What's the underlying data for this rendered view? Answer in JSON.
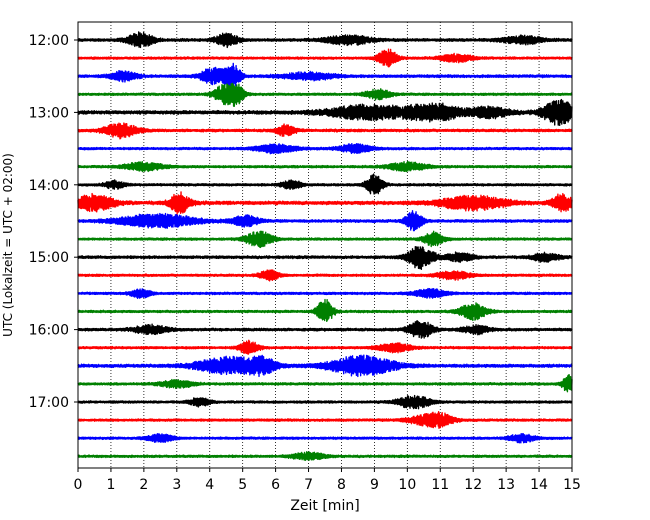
{
  "chart_data": {
    "type": "line",
    "title": "",
    "xlabel": "Zeit  [min]",
    "ylabel": "UTC (Lokalzeit = UTC + 02:00)",
    "xlim": [
      0,
      15
    ],
    "x_ticks": [
      "0",
      "1",
      "2",
      "3",
      "4",
      "5",
      "6",
      "7",
      "8",
      "9",
      "10",
      "11",
      "12",
      "13",
      "14",
      "15"
    ],
    "y_tick_labels": [
      "12:00",
      "13:00",
      "14:00",
      "15:00",
      "16:00",
      "17:00"
    ],
    "y_tick_rows": [
      0,
      4,
      8,
      12,
      16,
      20
    ],
    "grid": {
      "vertical": true,
      "style": "dotted"
    },
    "colors": [
      "#000000",
      "#ff0000",
      "#0000ff",
      "#008000"
    ],
    "traces": [
      {
        "time": "12:00",
        "color": "#000000",
        "noise": 0.35,
        "events": [
          [
            1.9,
            2.2,
            0.4
          ],
          [
            4.5,
            2.0,
            0.35
          ],
          [
            8.2,
            1.4,
            0.7
          ],
          [
            13.5,
            1.2,
            0.6
          ]
        ]
      },
      {
        "time": "12:15",
        "color": "#ff0000",
        "noise": 0.3,
        "events": [
          [
            9.4,
            2.6,
            0.3
          ],
          [
            11.5,
            1.2,
            0.5
          ]
        ]
      },
      {
        "time": "12:30",
        "color": "#0000ff",
        "noise": 0.35,
        "events": [
          [
            1.4,
            1.5,
            0.4
          ],
          [
            4.1,
            2.4,
            0.4
          ],
          [
            4.7,
            3.5,
            0.25
          ],
          [
            7.0,
            1.1,
            0.8
          ]
        ]
      },
      {
        "time": "12:45",
        "color": "#008000",
        "noise": 0.3,
        "events": [
          [
            4.4,
            2.6,
            0.3
          ],
          [
            4.8,
            3.0,
            0.25
          ],
          [
            9.1,
            1.5,
            0.4
          ]
        ]
      },
      {
        "time": "13:00",
        "color": "#000000",
        "noise": 0.45,
        "events": [
          [
            8.8,
            2.2,
            1.2
          ],
          [
            10.8,
            2.6,
            0.8
          ],
          [
            12.5,
            1.6,
            0.6
          ],
          [
            14.6,
            3.6,
            0.5
          ]
        ]
      },
      {
        "time": "13:15",
        "color": "#ff0000",
        "noise": 0.35,
        "events": [
          [
            1.3,
            2.2,
            0.5
          ],
          [
            6.3,
            1.6,
            0.3
          ]
        ]
      },
      {
        "time": "13:30",
        "color": "#0000ff",
        "noise": 0.3,
        "events": [
          [
            6.0,
            1.3,
            0.6
          ],
          [
            8.4,
            1.3,
            0.5
          ]
        ]
      },
      {
        "time": "13:45",
        "color": "#008000",
        "noise": 0.3,
        "events": [
          [
            2.0,
            1.3,
            0.6
          ],
          [
            10.0,
            1.3,
            0.6
          ]
        ]
      },
      {
        "time": "14:00",
        "color": "#000000",
        "noise": 0.3,
        "events": [
          [
            1.1,
            1.2,
            0.3
          ],
          [
            6.5,
            1.4,
            0.3
          ],
          [
            9.0,
            3.2,
            0.25
          ]
        ]
      },
      {
        "time": "14:15",
        "color": "#ff0000",
        "noise": 0.45,
        "events": [
          [
            0.5,
            2.4,
            0.6
          ],
          [
            3.1,
            3.2,
            0.3
          ],
          [
            12.0,
            2.2,
            1.0
          ],
          [
            14.7,
            2.6,
            0.3
          ]
        ]
      },
      {
        "time": "14:30",
        "color": "#0000ff",
        "noise": 0.35,
        "events": [
          [
            2.4,
            2.0,
            1.2
          ],
          [
            5.1,
            1.6,
            0.4
          ],
          [
            10.2,
            3.0,
            0.25
          ]
        ]
      },
      {
        "time": "14:45",
        "color": "#008000",
        "noise": 0.3,
        "events": [
          [
            5.5,
            2.4,
            0.4
          ],
          [
            10.8,
            2.2,
            0.3
          ]
        ]
      },
      {
        "time": "15:00",
        "color": "#000000",
        "noise": 0.35,
        "events": [
          [
            10.4,
            3.6,
            0.4
          ],
          [
            11.6,
            1.3,
            0.4
          ],
          [
            14.2,
            1.3,
            0.4
          ]
        ]
      },
      {
        "time": "15:15",
        "color": "#ff0000",
        "noise": 0.3,
        "events": [
          [
            5.8,
            1.5,
            0.3
          ],
          [
            11.4,
            1.3,
            0.5
          ]
        ]
      },
      {
        "time": "15:30",
        "color": "#0000ff",
        "noise": 0.3,
        "events": [
          [
            1.9,
            1.3,
            0.3
          ],
          [
            10.7,
            1.3,
            0.5
          ]
        ]
      },
      {
        "time": "15:45",
        "color": "#008000",
        "noise": 0.3,
        "events": [
          [
            7.5,
            3.6,
            0.25
          ],
          [
            12.0,
            2.6,
            0.4
          ]
        ]
      },
      {
        "time": "16:00",
        "color": "#000000",
        "noise": 0.35,
        "events": [
          [
            2.2,
            1.3,
            0.5
          ],
          [
            10.4,
            2.8,
            0.35
          ],
          [
            12.1,
            1.3,
            0.4
          ]
        ]
      },
      {
        "time": "16:15",
        "color": "#ff0000",
        "noise": 0.3,
        "events": [
          [
            5.2,
            2.0,
            0.3
          ],
          [
            9.6,
            1.3,
            0.5
          ]
        ]
      },
      {
        "time": "16:30",
        "color": "#0000ff",
        "noise": 0.4,
        "events": [
          [
            4.6,
            2.6,
            1.0
          ],
          [
            5.6,
            2.0,
            0.4
          ],
          [
            8.6,
            3.0,
            1.0
          ]
        ]
      },
      {
        "time": "16:45",
        "color": "#008000",
        "noise": 0.3,
        "events": [
          [
            3.0,
            1.2,
            0.5
          ],
          [
            14.9,
            2.6,
            0.2
          ]
        ]
      },
      {
        "time": "17:00",
        "color": "#000000",
        "noise": 0.3,
        "events": [
          [
            3.7,
            1.3,
            0.3
          ],
          [
            10.2,
            2.0,
            0.5
          ]
        ]
      },
      {
        "time": "17:15",
        "color": "#ff0000",
        "noise": 0.3,
        "events": [
          [
            10.6,
            1.5,
            0.6
          ],
          [
            11.0,
            1.3,
            0.4
          ]
        ]
      },
      {
        "time": "17:30",
        "color": "#0000ff",
        "noise": 0.3,
        "events": [
          [
            2.5,
            1.2,
            0.4
          ],
          [
            13.5,
            1.2,
            0.4
          ]
        ]
      },
      {
        "time": "17:45",
        "color": "#008000",
        "noise": 0.3,
        "events": [
          [
            7.0,
            1.1,
            0.5
          ]
        ]
      }
    ]
  }
}
